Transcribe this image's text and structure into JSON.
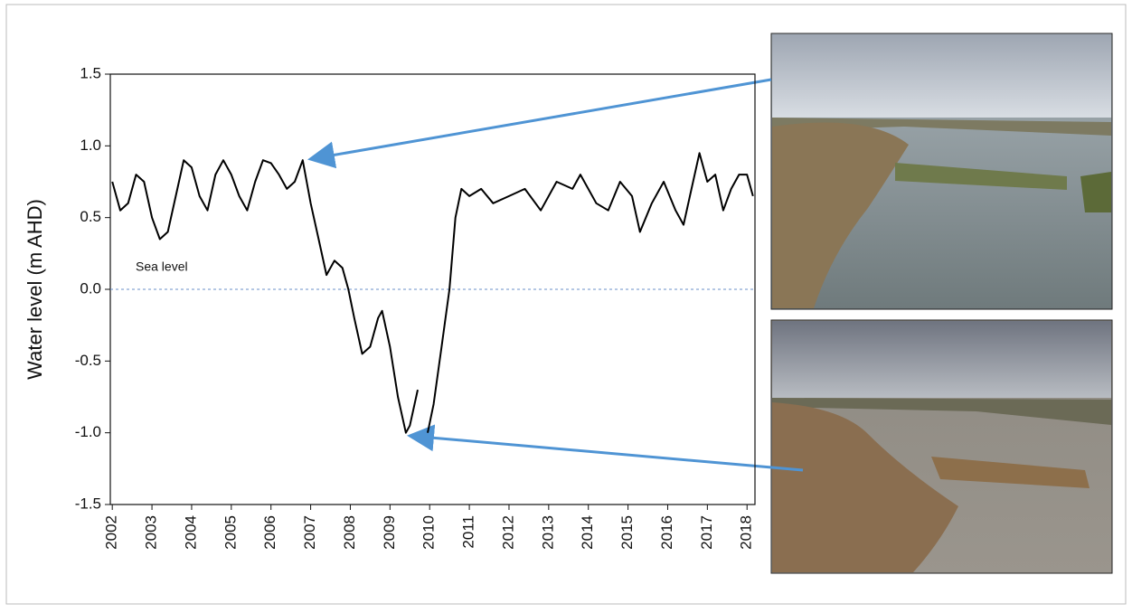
{
  "chart_data": {
    "type": "line",
    "y_label": "Water level (m AHD)",
    "x": [
      2002.0,
      2002.2,
      2002.4,
      2002.6,
      2002.8,
      2003.0,
      2003.2,
      2003.4,
      2003.6,
      2003.8,
      2004.0,
      2004.2,
      2004.4,
      2004.6,
      2004.8,
      2005.0,
      2005.2,
      2005.4,
      2005.6,
      2005.8,
      2006.0,
      2006.2,
      2006.4,
      2006.6,
      2006.8,
      2007.0,
      2007.2,
      2007.4,
      2007.6,
      2007.8,
      2007.95,
      2008.1,
      2008.3,
      2008.5,
      2008.7,
      2008.8,
      2009.0,
      2009.2,
      2009.4,
      2009.5,
      2009.7,
      2009.8,
      2009.95,
      2010.1,
      2010.3,
      2010.5,
      2010.65,
      2010.8,
      2011.0,
      2011.3,
      2011.6,
      2012.0,
      2012.4,
      2012.8,
      2013.2,
      2013.6,
      2013.8,
      2014.2,
      2014.5,
      2014.8,
      2015.1,
      2015.3,
      2015.6,
      2015.9,
      2016.2,
      2016.4,
      2016.6,
      2016.8,
      2017.0,
      2017.2,
      2017.4,
      2017.6,
      2017.8,
      2018.0,
      2018.15
    ],
    "values": [
      0.75,
      0.55,
      0.6,
      0.8,
      0.75,
      0.5,
      0.35,
      0.4,
      0.65,
      0.9,
      0.85,
      0.65,
      0.55,
      0.8,
      0.9,
      0.8,
      0.65,
      0.55,
      0.75,
      0.9,
      0.88,
      0.8,
      0.7,
      0.75,
      0.9,
      0.6,
      0.35,
      0.1,
      0.2,
      0.15,
      0.0,
      -0.2,
      -0.45,
      -0.4,
      -0.2,
      -0.15,
      -0.4,
      -0.75,
      -1.0,
      -0.95,
      -0.7,
      null,
      -1.0,
      -0.8,
      -0.4,
      0.0,
      0.5,
      0.7,
      0.65,
      0.7,
      0.6,
      0.65,
      0.7,
      0.55,
      0.75,
      0.7,
      0.8,
      0.6,
      0.55,
      0.75,
      0.65,
      0.4,
      0.6,
      0.75,
      0.55,
      0.45,
      0.7,
      0.95,
      0.75,
      0.8,
      0.55,
      0.7,
      0.8,
      0.8,
      0.65
    ],
    "color": "#000000",
    "xlim": [
      2001.95,
      2018.2
    ],
    "xticks": [
      2002,
      2003,
      2004,
      2005,
      2006,
      2007,
      2008,
      2009,
      2010,
      2011,
      2012,
      2013,
      2014,
      2015,
      2016,
      2017,
      2018
    ],
    "ylim": [
      -1.5,
      1.5
    ],
    "yticks": [
      {
        "value": -1.5,
        "label": "-1.5"
      },
      {
        "value": -1.0,
        "label": "-1.0"
      },
      -0.5,
      {
        "value": 0.0,
        "label": "0.0"
      },
      0.5,
      {
        "value": 1.0,
        "label": "1.0"
      },
      1.5
    ],
    "reference_line": {
      "value": 0,
      "label": "Sea level",
      "color": "#6a8fc8"
    }
  }
}
